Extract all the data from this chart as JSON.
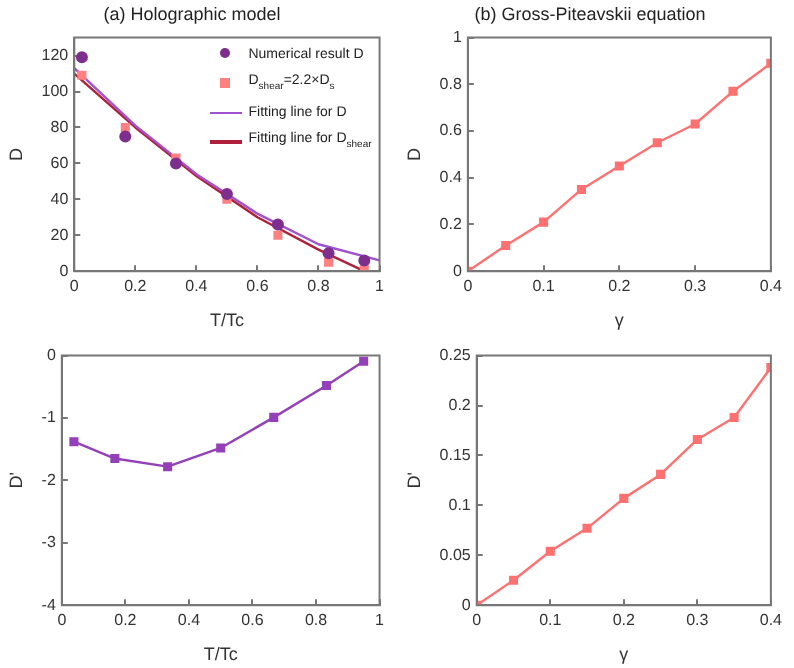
{
  "chart_data": [
    {
      "type": "scatter",
      "title": "(a) Holographic model",
      "xlabel": "T/Tc",
      "ylabel": "D",
      "xlim": [
        0,
        1
      ],
      "xticks": [
        0,
        0.2,
        0.4,
        0.6,
        0.8,
        1
      ],
      "ylim": [
        0,
        130
      ],
      "yticks": [
        0,
        20,
        40,
        60,
        80,
        100,
        120
      ],
      "grid": false,
      "legend": "top right",
      "series": [
        {
          "name": "Numerical result D",
          "color": "#7e2f8e",
          "marker": "circle",
          "x": [
            0.025,
            0.167,
            0.333,
            0.5,
            0.667,
            0.833,
            0.95
          ],
          "values": [
            119,
            75,
            60,
            43,
            26,
            10,
            6
          ]
        },
        {
          "name": "D$_{shear}$=2.2×D$_{s}$",
          "color": "#ff8080",
          "marker": "square",
          "x": [
            0.025,
            0.167,
            0.333,
            0.5,
            0.667,
            0.833,
            0.95
          ],
          "values": [
            109,
            80,
            63,
            40,
            20,
            5,
            1
          ]
        },
        {
          "name": "Fitting line for D",
          "type": "line",
          "color": "#a052d0",
          "marker": "none",
          "x": [
            0,
            0.2,
            0.4,
            0.6,
            0.8,
            1
          ],
          "values": [
            113,
            81,
            54,
            32,
            15,
            6
          ]
        },
        {
          "name": "Fitting line for D$_{shear}$",
          "type": "line",
          "color": "#b0203a",
          "marker": "none",
          "x": [
            0,
            0.2,
            0.4,
            0.6,
            0.8,
            0.95
          ],
          "values": [
            110,
            80,
            53,
            30,
            12,
            0
          ]
        }
      ]
    },
    {
      "type": "line",
      "title": "(b) Gross-Piteavskii equation",
      "xlabel": "γ",
      "ylabel": "D",
      "xlim": [
        0,
        0.4
      ],
      "xticks": [
        0,
        0.1,
        0.2,
        0.3,
        0.4
      ],
      "ylim": [
        0,
        1
      ],
      "yticks": [
        0,
        0.2,
        0.4,
        0.6,
        0.8,
        1
      ],
      "grid": false,
      "marker": "square",
      "series": [
        {
          "color": "#ff7070",
          "x": [
            0,
            0.05,
            0.1,
            0.15,
            0.2,
            0.25,
            0.3,
            0.35,
            0.4
          ],
          "values": [
            0,
            0.11,
            0.21,
            0.35,
            0.45,
            0.55,
            0.63,
            0.77,
            0.89
          ]
        }
      ]
    },
    {
      "type": "line",
      "xlabel": "T/Tc",
      "ylabel": "D'",
      "xlim": [
        0,
        1
      ],
      "xticks": [
        0,
        0.2,
        0.4,
        0.6,
        0.8,
        1
      ],
      "ylim": [
        -4,
        0
      ],
      "yticks": [
        -4,
        -3,
        -2,
        -1,
        0
      ],
      "grid": false,
      "marker": "square",
      "series": [
        {
          "color": "#9440b8",
          "x": [
            0.038,
            0.167,
            0.333,
            0.5,
            0.667,
            0.833,
            0.95
          ],
          "values": [
            -1.38,
            -1.65,
            -1.78,
            -1.48,
            -0.99,
            -0.48,
            -0.09
          ]
        }
      ]
    },
    {
      "type": "line",
      "xlabel": "γ",
      "ylabel": "D'",
      "xlim": [
        0,
        0.4
      ],
      "xticks": [
        0,
        0.1,
        0.2,
        0.3,
        0.4
      ],
      "ylim": [
        0,
        0.25
      ],
      "yticks": [
        0,
        0.05,
        0.1,
        0.15,
        0.2,
        0.25
      ],
      "grid": false,
      "marker": "square",
      "series": [
        {
          "color": "#ff7070",
          "x": [
            0,
            0.05,
            0.1,
            0.15,
            0.2,
            0.25,
            0.3,
            0.35,
            0.4
          ],
          "values": [
            0,
            0.025,
            0.054,
            0.077,
            0.107,
            0.131,
            0.166,
            0.188,
            0.238
          ]
        }
      ]
    }
  ]
}
